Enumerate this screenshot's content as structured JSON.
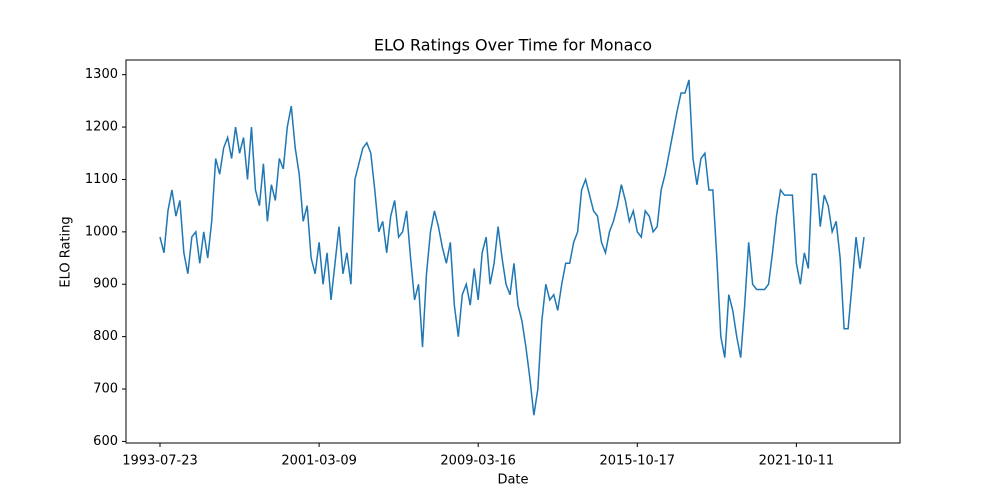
{
  "chart_data": {
    "type": "line",
    "title": "ELO Ratings Over Time for Monaco",
    "x_label": "Date",
    "y_label": "ELO Rating",
    "categories": [
      "1993-07-23",
      null,
      null,
      null,
      null,
      null,
      null,
      null,
      null,
      null,
      null,
      null,
      null,
      null,
      null,
      null,
      null,
      null,
      null,
      null,
      null,
      null,
      null,
      null,
      null,
      null,
      null,
      null,
      null,
      null,
      null,
      null,
      null,
      null,
      null,
      null,
      null,
      null,
      null,
      null,
      "2001-03-09",
      null,
      null,
      null,
      null,
      null,
      null,
      null,
      null,
      null,
      null,
      null,
      null,
      null,
      null,
      null,
      null,
      null,
      null,
      null,
      null,
      null,
      null,
      null,
      null,
      null,
      null,
      null,
      null,
      null,
      null,
      null,
      null,
      null,
      null,
      null,
      null,
      null,
      null,
      null,
      "2009-03-16",
      null,
      null,
      null,
      null,
      null,
      null,
      null,
      null,
      null,
      null,
      null,
      null,
      null,
      null,
      null,
      null,
      null,
      null,
      null,
      null,
      null,
      null,
      null,
      null,
      null,
      null,
      null,
      null,
      null,
      null,
      null,
      null,
      null,
      null,
      null,
      null,
      null,
      null,
      null,
      "2015-10-17",
      null,
      null,
      null,
      null,
      null,
      null,
      null,
      null,
      null,
      null,
      null,
      null,
      null,
      null,
      null,
      null,
      null,
      null,
      null,
      null,
      null,
      null,
      null,
      null,
      null,
      null,
      null,
      null,
      null,
      null,
      null,
      null,
      null,
      null,
      null,
      null,
      null,
      null,
      null,
      "2021-10-11",
      null,
      null,
      null,
      null,
      null,
      null,
      null,
      null,
      null,
      null,
      null,
      null,
      null,
      null,
      null,
      null,
      null
    ],
    "values": [
      990,
      960,
      1040,
      1080,
      1030,
      1060,
      960,
      920,
      990,
      1000,
      940,
      1000,
      950,
      1020,
      1140,
      1110,
      1160,
      1180,
      1140,
      1200,
      1150,
      1180,
      1100,
      1200,
      1080,
      1050,
      1130,
      1020,
      1090,
      1060,
      1140,
      1120,
      1200,
      1240,
      1160,
      1110,
      1020,
      1050,
      950,
      920,
      980,
      900,
      960,
      870,
      940,
      1010,
      920,
      960,
      900,
      1100,
      1130,
      1160,
      1170,
      1150,
      1080,
      1000,
      1020,
      960,
      1030,
      1060,
      990,
      1000,
      1040,
      950,
      870,
      900,
      780,
      920,
      1000,
      1040,
      1010,
      970,
      940,
      980,
      860,
      800,
      880,
      900,
      860,
      930,
      870,
      960,
      990,
      900,
      940,
      1010,
      950,
      900,
      880,
      940,
      860,
      830,
      780,
      720,
      650,
      700,
      830,
      900,
      870,
      880,
      850,
      900,
      940,
      940,
      980,
      1000,
      1080,
      1100,
      1070,
      1040,
      1030,
      980,
      960,
      1000,
      1020,
      1050,
      1090,
      1060,
      1020,
      1040,
      1000,
      990,
      1040,
      1030,
      1000,
      1010,
      1080,
      1110,
      1150,
      1190,
      1230,
      1265,
      1265,
      1290,
      1140,
      1090,
      1140,
      1150,
      1080,
      1080,
      950,
      800,
      760,
      880,
      850,
      800,
      760,
      860,
      980,
      900,
      890,
      890,
      890,
      900,
      960,
      1030,
      1080,
      1070,
      1070,
      1070,
      940,
      900,
      960,
      930,
      1110,
      1110,
      1010,
      1070,
      1050,
      1000,
      1020,
      950,
      815,
      815,
      900,
      990,
      930,
      990
    ],
    "color": "#1f77b4",
    "ylim": [
      597,
      1328
    ],
    "yticks": [
      600,
      700,
      800,
      900,
      1000,
      1100,
      1200,
      1300
    ]
  }
}
